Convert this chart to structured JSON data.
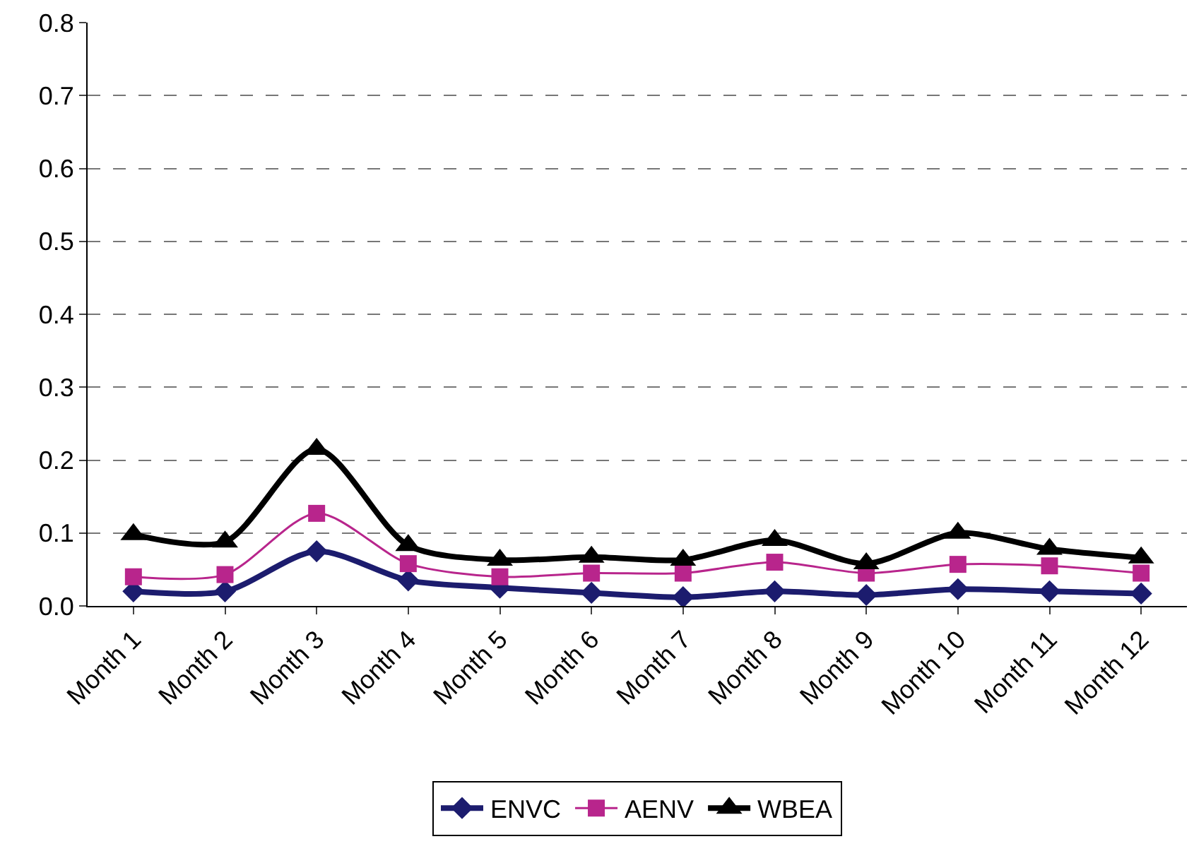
{
  "chart_data": {
    "type": "line",
    "categories": [
      "Month 1",
      "Month 2",
      "Month 3",
      "Month 4",
      "Month 5",
      "Month 6",
      "Month 7",
      "Month 8",
      "Month 9",
      "Month 10",
      "Month 11",
      "Month 12"
    ],
    "series": [
      {
        "name": "ENVC",
        "color": "#1c1c6e",
        "marker": "diamond",
        "values": [
          0.02,
          0.02,
          0.075,
          0.035,
          0.025,
          0.018,
          0.012,
          0.02,
          0.015,
          0.023,
          0.02,
          0.017
        ]
      },
      {
        "name": "AENV",
        "color": "#b8258c",
        "marker": "square",
        "values": [
          0.04,
          0.043,
          0.127,
          0.058,
          0.04,
          0.045,
          0.045,
          0.06,
          0.045,
          0.057,
          0.055,
          0.045
        ]
      },
      {
        "name": "WBEA",
        "color": "#000000",
        "marker": "triangle",
        "values": [
          0.098,
          0.088,
          0.215,
          0.083,
          0.063,
          0.067,
          0.063,
          0.09,
          0.058,
          0.1,
          0.078,
          0.066
        ]
      }
    ],
    "ylim": [
      0,
      0.8
    ],
    "yticks": [
      {
        "value": 0,
        "label": "0.0"
      },
      {
        "value": 0.1,
        "label": "0.1"
      },
      {
        "value": 0.2,
        "label": "0.2"
      },
      {
        "value": 0.3,
        "label": "0.3"
      },
      {
        "value": 0.4,
        "label": "0.4"
      },
      {
        "value": 0.5,
        "label": "0.5"
      },
      {
        "value": 0.6,
        "label": "0.6"
      },
      {
        "value": 0.7,
        "label": "0.7"
      },
      {
        "value": 0.8,
        "label": "0.8"
      }
    ],
    "grid": "y",
    "legend": "bottom",
    "line_style": "solid"
  }
}
